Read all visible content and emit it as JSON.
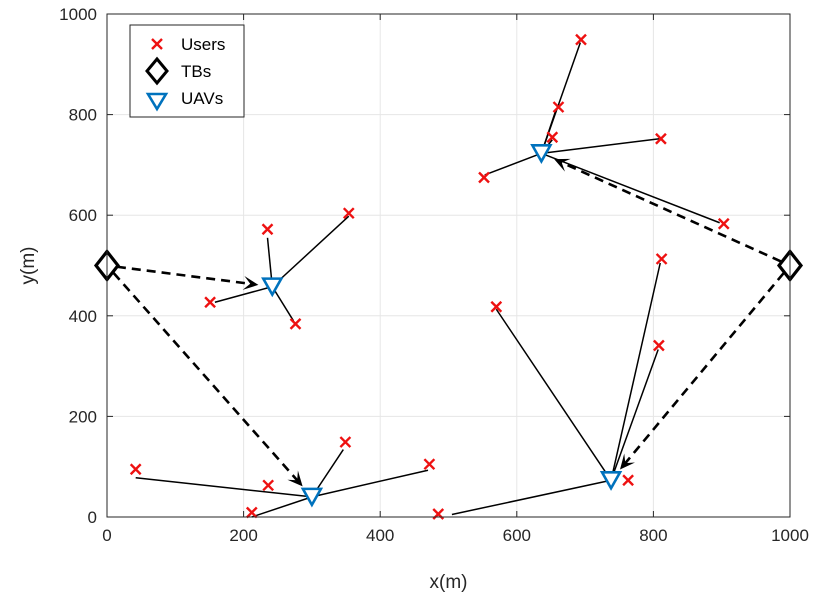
{
  "chart_data": {
    "type": "scatter",
    "title": "",
    "xlabel": "x(m)",
    "ylabel": "y(m)",
    "xlim": [
      0,
      1000
    ],
    "ylim": [
      0,
      1000
    ],
    "xticks": [
      0,
      200,
      400,
      600,
      800,
      1000
    ],
    "yticks": [
      0,
      200,
      400,
      600,
      800,
      1000
    ],
    "xtick_labels": [
      "0",
      "200",
      "400",
      "600",
      "800",
      "1000"
    ],
    "ytick_labels": [
      "0",
      "200",
      "400",
      "600",
      "800",
      "1000"
    ],
    "grid": true,
    "legend_position": "top-left",
    "colors": {
      "users": "#ee1111",
      "tbs": "#000000",
      "uavs": "#0072bd",
      "links": "#000000",
      "grid": "#e6e6e6"
    },
    "series": [
      {
        "name": "Users",
        "marker": "x",
        "points": [
          [
            42,
            95
          ],
          [
            236,
            63
          ],
          [
            212,
            9
          ],
          [
            349,
            149
          ],
          [
            472,
            105
          ],
          [
            485,
            6
          ],
          [
            151,
            427
          ],
          [
            235,
            572
          ],
          [
            276,
            384
          ],
          [
            354,
            604
          ],
          [
            552,
            675
          ],
          [
            652,
            755
          ],
          [
            661,
            815
          ],
          [
            694,
            949
          ],
          [
            811,
            752
          ],
          [
            903,
            583
          ],
          [
            570,
            418
          ],
          [
            763,
            73
          ],
          [
            808,
            341
          ],
          [
            812,
            513
          ]
        ]
      },
      {
        "name": "TBs",
        "marker": "diamond",
        "points": [
          [
            0,
            500
          ],
          [
            1000,
            500
          ]
        ]
      },
      {
        "name": "UAVs",
        "marker": "triangle-down",
        "points": [
          [
            300,
            40
          ],
          [
            242,
            458
          ],
          [
            636,
            723
          ],
          [
            738,
            73
          ]
        ]
      }
    ],
    "links": [
      {
        "from": [
          300,
          40
        ],
        "to": [
          42,
          78
        ]
      },
      {
        "from": [
          300,
          40
        ],
        "to": [
          212,
          0
        ]
      },
      {
        "from": [
          300,
          40
        ],
        "to": [
          346,
          134
        ]
      },
      {
        "from": [
          300,
          40
        ],
        "to": [
          470,
          93
        ]
      },
      {
        "from": [
          242,
          458
        ],
        "to": [
          158,
          427
        ]
      },
      {
        "from": [
          242,
          458
        ],
        "to": [
          354,
          598
        ]
      },
      {
        "from": [
          242,
          458
        ],
        "to": [
          235,
          555
        ]
      },
      {
        "from": [
          242,
          458
        ],
        "to": [
          273,
          390
        ]
      },
      {
        "from": [
          636,
          723
        ],
        "to": [
          553,
          680
        ]
      },
      {
        "from": [
          636,
          723
        ],
        "to": [
          693,
          943
        ]
      },
      {
        "from": [
          636,
          723
        ],
        "to": [
          657,
          808
        ]
      },
      {
        "from": [
          636,
          723
        ],
        "to": [
          652,
          750
        ]
      },
      {
        "from": [
          636,
          723
        ],
        "to": [
          809,
          752
        ]
      },
      {
        "from": [
          636,
          723
        ],
        "to": [
          897,
          585
        ]
      },
      {
        "from": [
          738,
          73
        ],
        "to": [
          505,
          5
        ]
      },
      {
        "from": [
          738,
          73
        ],
        "to": [
          570,
          413
        ]
      },
      {
        "from": [
          738,
          73
        ],
        "to": [
          810,
          505
        ]
      },
      {
        "from": [
          738,
          73
        ],
        "to": [
          807,
          333
        ]
      }
    ],
    "dashed_links": [
      {
        "from": [
          0,
          500
        ],
        "to": [
          242,
          458
        ]
      },
      {
        "from": [
          0,
          500
        ],
        "to": [
          300,
          40
        ]
      },
      {
        "from": [
          1000,
          500
        ],
        "to": [
          636,
          723
        ]
      },
      {
        "from": [
          1000,
          500
        ],
        "to": [
          738,
          73
        ]
      }
    ]
  }
}
